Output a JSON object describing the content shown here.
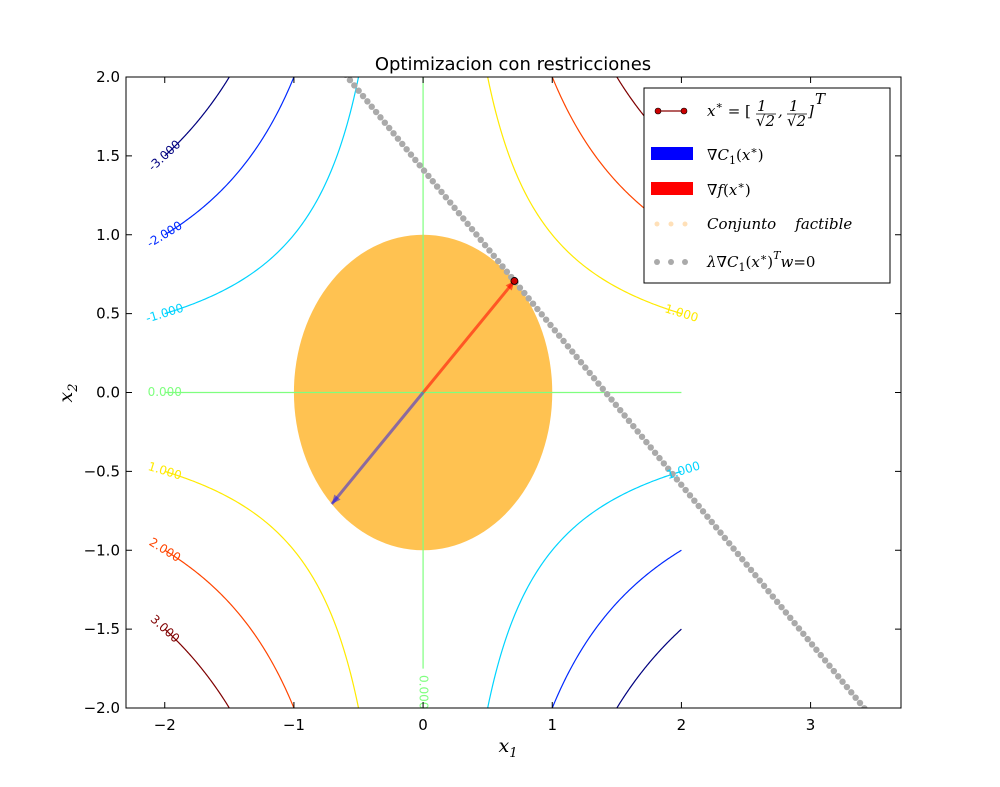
{
  "chart_data": {
    "type": "contour",
    "title": "Optimizacion con restricciones",
    "xlabel_base": "x",
    "xlabel_sub": "1",
    "ylabel_base": "x",
    "ylabel_sub": "2",
    "xlim": [
      -2.3,
      3.7
    ],
    "ylim": [
      -2.0,
      2.0
    ],
    "xticks": [
      -2,
      -1,
      0,
      1,
      2,
      3
    ],
    "yticks": [
      -2.0,
      -1.5,
      -1.0,
      -0.5,
      0.0,
      0.5,
      1.0,
      1.5,
      2.0
    ],
    "xtick_labels": [
      "−2",
      "−1",
      "0",
      "1",
      "2",
      "3"
    ],
    "ytick_labels": [
      "−2.0",
      "−1.5",
      "−1.0",
      "−0.5",
      "0.0",
      "0.5",
      "1.0",
      "1.5",
      "2.0"
    ],
    "function": "f(x1, x2) = x1 * x2",
    "contour_levels": [
      {
        "level": 3,
        "color": "#7f0000",
        "label": "3.000"
      },
      {
        "level": 2,
        "color": "#ff4500",
        "label": "2.000"
      },
      {
        "level": 1,
        "color": "#ffea00",
        "label": "1.000"
      },
      {
        "level": 0,
        "color": "#7fff7f",
        "label": "0.000"
      },
      {
        "level": -1,
        "color": "#00d4ff",
        "label": "-1.000"
      },
      {
        "level": -2,
        "color": "#0029ff",
        "label": "-2.000"
      },
      {
        "level": -3,
        "color": "#00007f",
        "label": "-3.000"
      }
    ],
    "contour_label_positions": [
      {
        "level": 3,
        "x": -2.0,
        "y": -1.5
      },
      {
        "level": 2,
        "x": -2.0,
        "y": -1.0
      },
      {
        "level": 1,
        "x": -2.0,
        "y": -0.5
      },
      {
        "level": 3,
        "x": 2.0,
        "y": 1.5
      },
      {
        "level": 2,
        "x": 2.0,
        "y": 1.0
      },
      {
        "level": 1,
        "x": 2.0,
        "y": 0.5
      },
      {
        "level": -1,
        "x": -2.0,
        "y": 0.5
      },
      {
        "level": -2,
        "x": -2.0,
        "y": 1.0
      },
      {
        "level": -3,
        "x": -2.0,
        "y": 1.5
      },
      {
        "level": -1,
        "x": 2.0,
        "y": -0.5
      }
    ],
    "zero_labels": [
      "0.000",
      "0.000"
    ],
    "feasible_set": {
      "type": "disk",
      "center": [
        0,
        0
      ],
      "radius": 1.0,
      "color": "#ffb732",
      "label": "Conjunto    factible"
    },
    "constraint_tangent": {
      "points_on_line": [
        [
          0.7071,
          0.7071
        ]
      ],
      "direction": [
        1,
        -1
      ],
      "x_range": [
        -0.6,
        3.45
      ],
      "color": "#aaaaaa",
      "label": "λ∇C₁(x*)ᵀw = 0"
    },
    "optimum": {
      "x": 0.7071,
      "y": 0.7071,
      "color": "#cc0000",
      "label": "x* = [1/√2, 1/√2]ᵀ"
    },
    "vectors": [
      {
        "name": "∇C₁(x*)",
        "from": [
          0,
          0
        ],
        "to": [
          -0.7071,
          -0.7071
        ],
        "color": "#0000ff"
      },
      {
        "name": "∇f(x*)",
        "from": [
          0,
          0
        ],
        "to": [
          0.7071,
          0.7071
        ],
        "color": "#ff0000"
      }
    ],
    "legend": {
      "position": "top-right",
      "entries": [
        {
          "kind": "line-marker",
          "color": "#cc0000",
          "text_main": "x",
          "text_sup": "∗",
          "text_rest": " = [",
          "text_end": "]"
        },
        {
          "kind": "patch",
          "color": "#0000ff",
          "text": "∇C₁(x*)"
        },
        {
          "kind": "patch",
          "color": "#ff0000",
          "text": "∇f(x*)"
        },
        {
          "kind": "dots",
          "color": "#ffe0b8",
          "text": "Conjunto    factible"
        },
        {
          "kind": "dots",
          "color": "#aaaaaa",
          "text": "λ∇C₁(x*)ᵀw = 0"
        }
      ]
    }
  }
}
